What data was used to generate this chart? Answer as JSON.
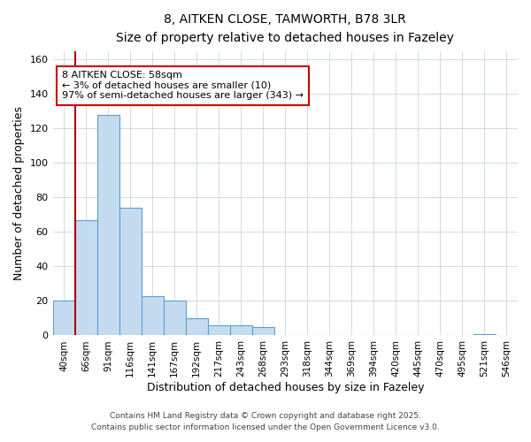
{
  "title": "8, AITKEN CLOSE, TAMWORTH, B78 3LR",
  "subtitle": "Size of property relative to detached houses in Fazeley",
  "xlabel": "Distribution of detached houses by size in Fazeley",
  "ylabel": "Number of detached properties",
  "bar_color": "#c5dcf0",
  "bar_edge_color": "#5a9fd4",
  "bin_labels": [
    "40sqm",
    "66sqm",
    "91sqm",
    "116sqm",
    "141sqm",
    "167sqm",
    "192sqm",
    "217sqm",
    "243sqm",
    "268sqm",
    "293sqm",
    "318sqm",
    "344sqm",
    "369sqm",
    "394sqm",
    "420sqm",
    "445sqm",
    "470sqm",
    "495sqm",
    "521sqm",
    "546sqm"
  ],
  "bar_heights": [
    20,
    67,
    128,
    74,
    23,
    20,
    10,
    6,
    6,
    5,
    0,
    0,
    0,
    0,
    0,
    0,
    0,
    0,
    0,
    1,
    0
  ],
  "ylim": [
    0,
    165
  ],
  "yticks": [
    0,
    20,
    40,
    60,
    80,
    100,
    120,
    140,
    160
  ],
  "red_line_bin_index": 1,
  "annotation_title": "8 AITKEN CLOSE: 58sqm",
  "annotation_line1": "← 3% of detached houses are smaller (10)",
  "annotation_line2": "97% of semi-detached houses are larger (343) →",
  "annotation_box_color": "#ffffff",
  "annotation_border_color": "#cc0000",
  "footnote1": "Contains HM Land Registry data © Crown copyright and database right 2025.",
  "footnote2": "Contains public sector information licensed under the Open Government Licence v3.0.",
  "background_color": "#ffffff",
  "grid_color": "#c8d4e8"
}
